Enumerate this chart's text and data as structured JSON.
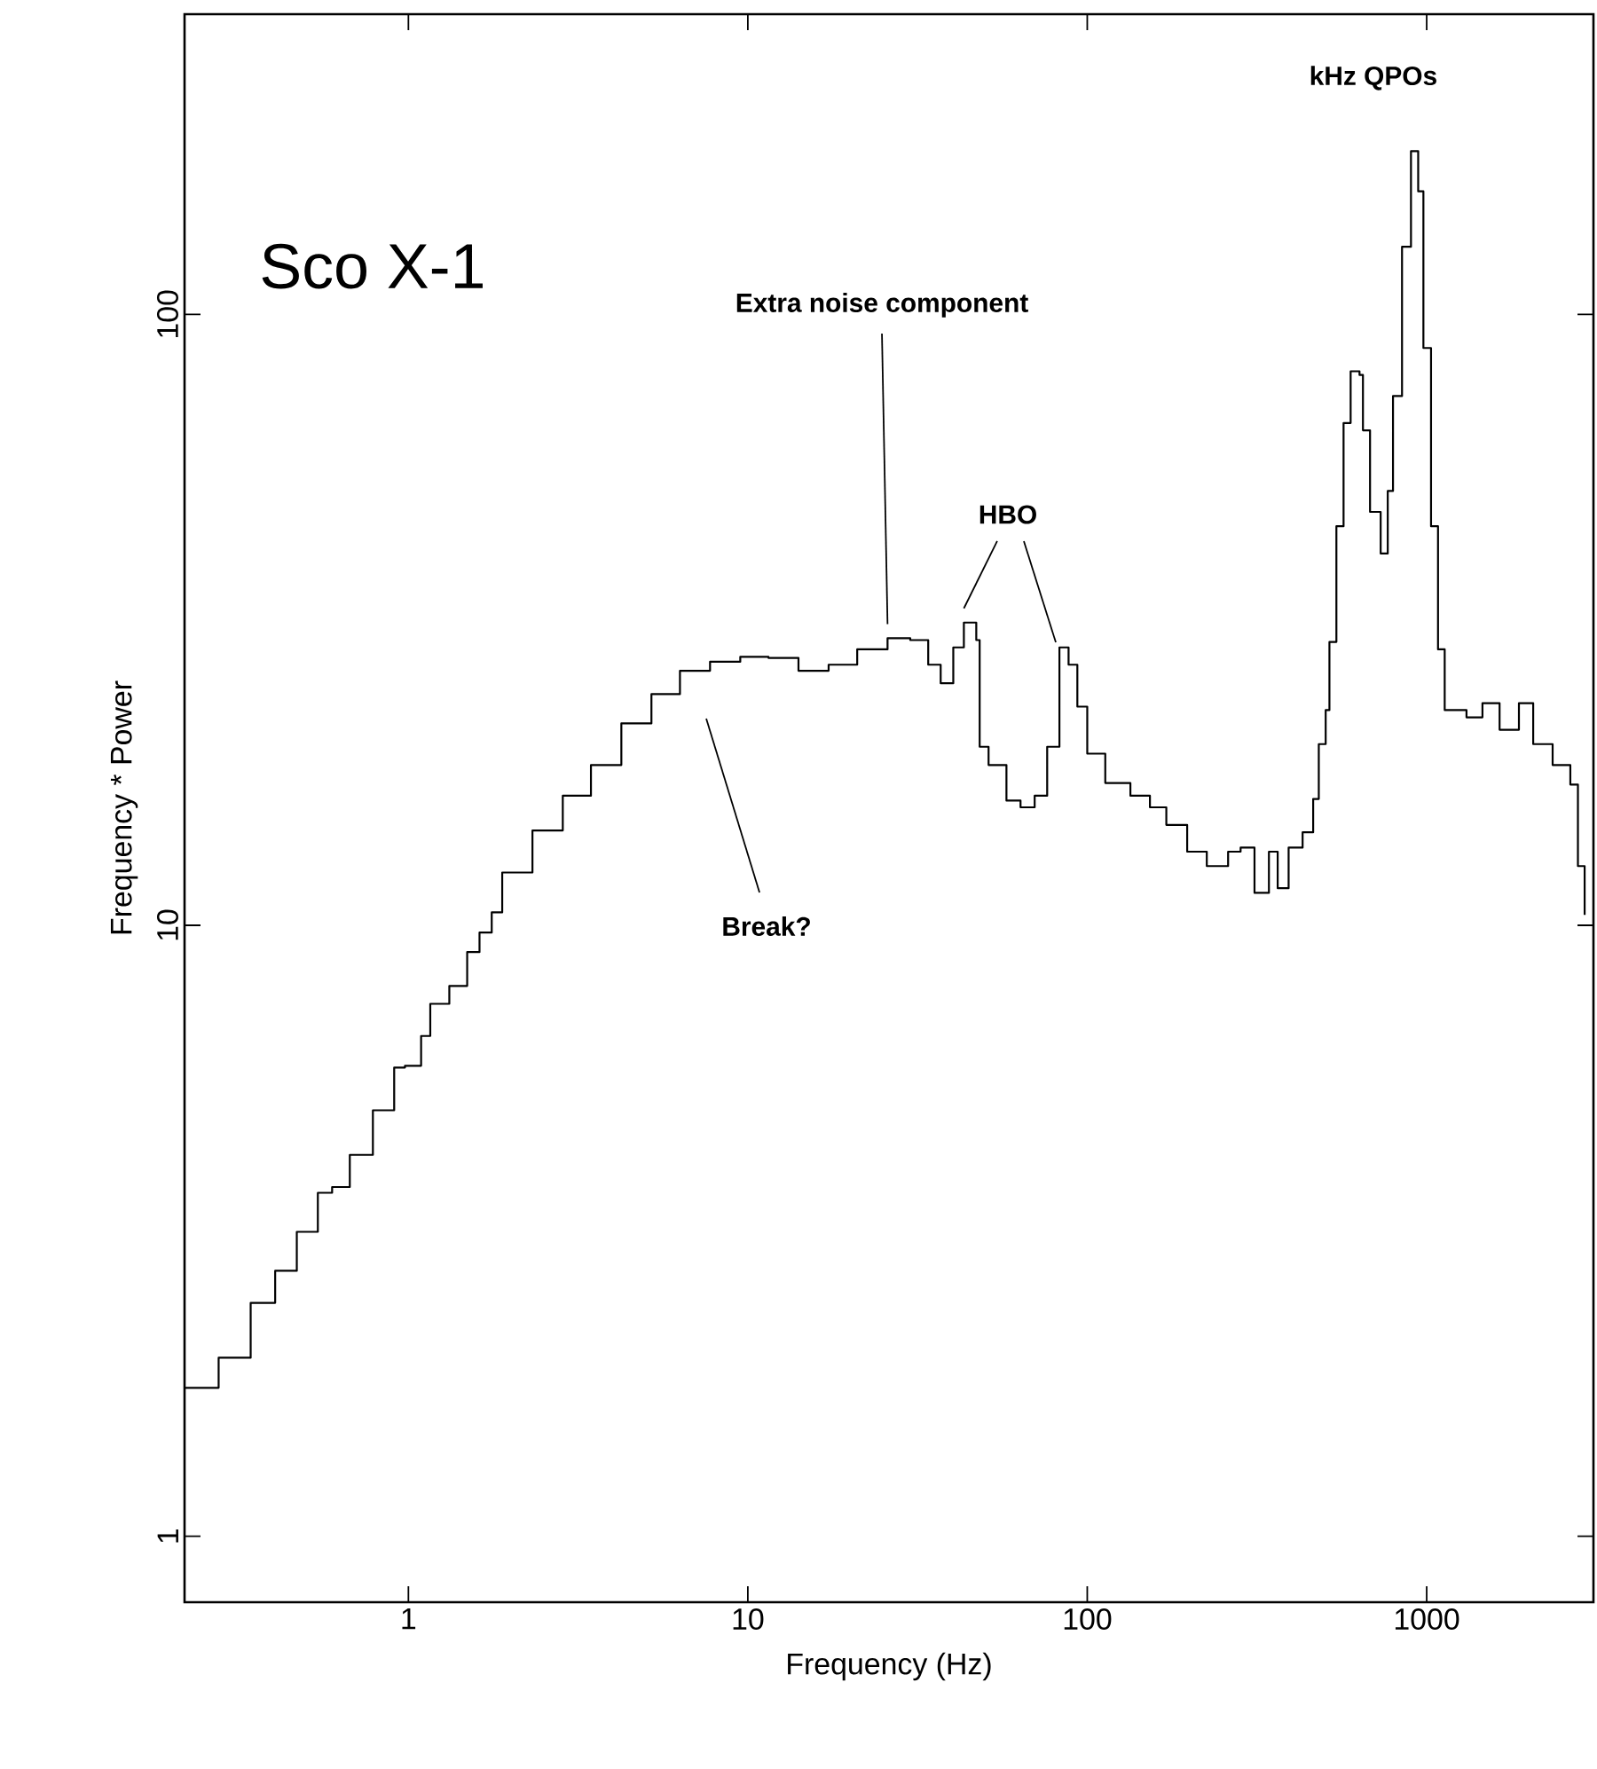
{
  "chart_data": {
    "type": "step",
    "title": "Sco X-1",
    "xlabel": "Frequency (Hz)",
    "ylabel": "Frequency * Power",
    "log": "xy",
    "xlim": [
      0.219,
      3100
    ],
    "ylim": [
      0.78,
      310
    ],
    "xticks": [
      1,
      10,
      100,
      1000
    ],
    "yticks": [
      1,
      10,
      100
    ],
    "annotations": [
      {
        "text": "Extra noise component",
        "x": 25.8,
        "y": 29.5
      },
      {
        "text": "HBO",
        "x": 43.3,
        "y": 31.3
      },
      "Break?",
      "kHz QPOs"
    ],
    "series": [
      {
        "color": "#000000",
        "x": [
          0.219,
          0.276,
          0.343,
          0.405,
          0.469,
          0.541,
          0.596,
          0.672,
          0.786,
          0.908,
          0.977,
          1.09,
          1.16,
          1.32,
          1.49,
          1.62,
          1.76,
          1.89,
          2.32,
          2.85,
          3.45,
          4.24,
          5.2,
          6.31,
          7.74,
          9.5,
          11.5,
          14.1,
          17.3,
          21.0,
          25.8,
          30.1,
          34.0,
          37.0,
          40.3,
          43.3,
          47.1,
          48.2,
          51.2,
          57.8,
          63.6,
          70.0,
          76.2,
          82.8,
          88.1,
          93.5,
          100,
          113,
          134,
          153,
          171,
          197,
          225,
          260,
          283,
          311,
          343,
          364,
          392,
          431,
          463,
          481,
          504,
          517,
          542,
          569,
          597,
          634,
          649,
          681,
          732,
          768,
          796,
          846,
          899,
          944,
          978,
          1030,
          1080,
          1130,
          1310,
          1460,
          1640,
          1870,
          2060,
          2350,
          2650,
          2790,
          2920
        ],
        "values": [
          1.75,
          1.96,
          2.41,
          2.72,
          3.15,
          3.65,
          3.73,
          4.21,
          4.98,
          5.85,
          5.89,
          6.59,
          7.44,
          7.96,
          9.04,
          9.73,
          10.5,
          12.2,
          14.3,
          16.3,
          18.3,
          21.4,
          23.9,
          26.1,
          27.0,
          27.5,
          27.4,
          26.1,
          26.7,
          28.3,
          29.5,
          29.3,
          26.7,
          24.9,
          28.5,
          31.3,
          29.3,
          19.6,
          18.3,
          16.0,
          15.6,
          16.3,
          19.6,
          28.5,
          26.7,
          22.8,
          19.1,
          17.1,
          16.3,
          15.6,
          14.6,
          13.2,
          12.5,
          13.2,
          13.4,
          11.3,
          13.2,
          11.5,
          13.4,
          14.2,
          16.1,
          19.8,
          22.5,
          29.1,
          45.0,
          66.4,
          80.7,
          79.6,
          64.6,
          47.5,
          40.6,
          51.4,
          73.5,
          129,
          185,
          159,
          88.1,
          45.0,
          28.3,
          22.5,
          21.9,
          23.1,
          20.9,
          23.1,
          19.8,
          18.3,
          17.0,
          12.5,
          10.4
        ]
      }
    ]
  }
}
